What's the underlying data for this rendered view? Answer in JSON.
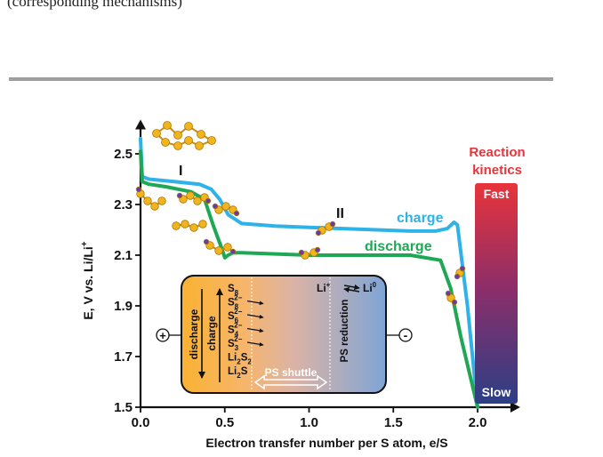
{
  "caption": "(corresponding mechanisms)",
  "chart_data": {
    "type": "line",
    "xlabel": "Electron transfer number per S atom, e/S",
    "ylabel": "E, V vs. Li/Li",
    "ylabel_sup": "+",
    "xlim": [
      0,
      2.2
    ],
    "ylim": [
      1.5,
      2.6
    ],
    "x_ticks": [
      "0.0",
      "0.5",
      "1.0",
      "1.5",
      "2.0"
    ],
    "y_ticks": [
      "1.5",
      "1.7",
      "1.9",
      "2.1",
      "2.3",
      "2.5"
    ],
    "series": [
      {
        "name": "charge",
        "color": "#2eb2e8",
        "x": [
          0.0,
          0.01,
          0.05,
          0.2,
          0.35,
          0.42,
          0.47,
          0.52,
          0.6,
          0.8,
          1.0,
          1.2,
          1.4,
          1.6,
          1.75,
          1.82,
          1.86,
          1.88,
          1.94,
          2.0
        ],
        "y": [
          2.56,
          2.41,
          2.4,
          2.39,
          2.38,
          2.36,
          2.32,
          2.26,
          2.225,
          2.215,
          2.21,
          2.205,
          2.2,
          2.195,
          2.195,
          2.205,
          2.23,
          2.22,
          1.9,
          1.5
        ]
      },
      {
        "name": "discharge",
        "color": "#1ea855",
        "x": [
          0.0,
          0.01,
          0.05,
          0.15,
          0.3,
          0.38,
          0.43,
          0.48,
          0.5,
          0.52,
          0.55,
          0.6,
          0.8,
          1.0,
          1.2,
          1.4,
          1.6,
          1.78,
          1.84,
          1.9,
          2.0
        ],
        "y": [
          2.51,
          2.39,
          2.38,
          2.37,
          2.35,
          2.32,
          2.22,
          2.13,
          2.09,
          2.1,
          2.11,
          2.11,
          2.105,
          2.1,
          2.1,
          2.1,
          2.1,
          2.08,
          1.97,
          1.78,
          1.5
        ]
      }
    ],
    "annotations": {
      "region_I": "I",
      "region_II": "II",
      "charge_label": "charge",
      "discharge_label": "discharge"
    },
    "colorbar": {
      "title_line1": "Reaction",
      "title_line2": "kinetics",
      "top_label": "Fast",
      "bottom_label": "Slow",
      "colors": [
        "#e8343a",
        "#2c3f86"
      ]
    },
    "inset": {
      "species": [
        {
          "base": "S",
          "sub": "8",
          "sup": ""
        },
        {
          "base": "S",
          "sub": "8",
          "sup": "2−"
        },
        {
          "base": "S",
          "sub": "6",
          "sup": "2−"
        },
        {
          "base": "S",
          "sub": "4",
          "sup": "2−"
        },
        {
          "base": "S",
          "sub": "3",
          "sup": "2−"
        },
        {
          "base": "Li",
          "sub": "2",
          "sup": "",
          "base2": "S",
          "sub2": "2"
        },
        {
          "base": "Li",
          "sub": "2",
          "sup": "",
          "base2": "S",
          "sub2": ""
        }
      ],
      "discharge_label": "discharge",
      "charge_label": "charge",
      "shuttle_label": "PS shuttle",
      "reduction_label": "PS reduction",
      "li_plus": "Li",
      "li_plus_sup": "+",
      "li_zero": "Li",
      "li_zero_sup": "0",
      "plus_sign": "+",
      "minus_sign": "-"
    }
  }
}
